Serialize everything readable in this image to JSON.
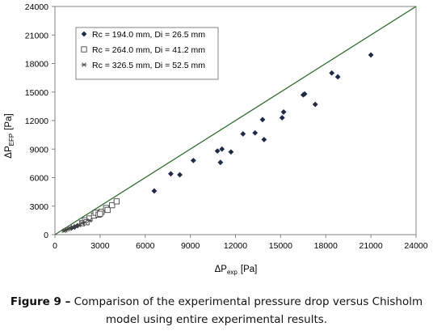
{
  "chart_data": {
    "type": "scatter",
    "xlabel": {
      "main": "ΔP",
      "sub": "exp",
      "unit": "[Pa]"
    },
    "ylabel": {
      "main": "ΔP",
      "sub": "EFP",
      "unit": "[Pa]"
    },
    "xlim": [
      0,
      24000
    ],
    "ylim": [
      0,
      24000
    ],
    "xticks": [
      "0",
      "3000",
      "6000",
      "9000",
      "12000",
      "15000",
      "18000",
      "21000",
      "24000"
    ],
    "yticks": [
      "0",
      "3000",
      "6000",
      "9000",
      "12000",
      "15000",
      "18000",
      "21000",
      "24000"
    ],
    "grid": false,
    "legend_position": "top-left",
    "reference_line": {
      "x": [
        0,
        24000
      ],
      "y": [
        0,
        24000
      ],
      "color": "#2e6b2e"
    },
    "series": [
      {
        "name": "Rc = 194.0 mm, Di = 26.5 mm",
        "marker": "diamond",
        "points": [
          [
            6600,
            4600
          ],
          [
            7700,
            6400
          ],
          [
            8300,
            6300
          ],
          [
            9200,
            7800
          ],
          [
            10800,
            8800
          ],
          [
            11000,
            7600
          ],
          [
            11100,
            9000
          ],
          [
            11700,
            8700
          ],
          [
            12500,
            10600
          ],
          [
            13300,
            10700
          ],
          [
            13800,
            12100
          ],
          [
            13900,
            10000
          ],
          [
            15100,
            12300
          ],
          [
            15200,
            12900
          ],
          [
            16500,
            14700
          ],
          [
            16600,
            14800
          ],
          [
            17300,
            13700
          ],
          [
            18400,
            17000
          ],
          [
            18800,
            16600
          ],
          [
            21000,
            18900
          ],
          [
            1100,
            700
          ],
          [
            1300,
            800
          ],
          [
            1500,
            950
          ]
        ]
      },
      {
        "name": "Rc = 264.0 mm, Di = 41.2 mm",
        "marker": "square",
        "points": [
          [
            1800,
            1200
          ],
          [
            2000,
            1500
          ],
          [
            2300,
            1700
          ],
          [
            2600,
            2000
          ],
          [
            2700,
            2300
          ],
          [
            2900,
            2100
          ],
          [
            3100,
            2400
          ],
          [
            3400,
            2800
          ],
          [
            3500,
            2600
          ],
          [
            3800,
            3100
          ],
          [
            4100,
            3500
          ],
          [
            2100,
            1300
          ],
          [
            3000,
            2200
          ]
        ]
      },
      {
        "name": "Rc = 326.5 mm, Di = 52.5 mm",
        "marker": "star",
        "points": [
          [
            600,
            400
          ],
          [
            700,
            450
          ],
          [
            800,
            550
          ],
          [
            900,
            600
          ],
          [
            1000,
            700
          ],
          [
            1200,
            800
          ],
          [
            1400,
            900
          ],
          [
            1600,
            1000
          ],
          [
            1800,
            1200
          ],
          [
            2000,
            1300
          ],
          [
            2300,
            1500
          ]
        ]
      }
    ]
  },
  "caption": {
    "label": "Figure 9 –",
    "text": " Comparison of the experimental pressure drop versus Chisholm model using entire experimental results."
  },
  "colors": {
    "marker": "#1f2a44",
    "axis": "#808080",
    "line": "#2e6b2e"
  }
}
